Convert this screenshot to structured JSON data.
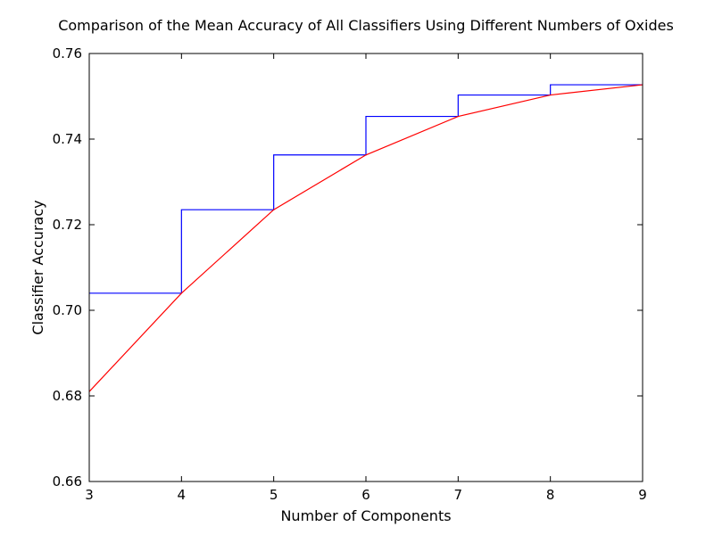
{
  "chart_data": {
    "type": "line",
    "title": "Comparison of the Mean Accuracy of All Classifiers Using Different Numbers of Oxides",
    "xlabel": "Number of Components",
    "ylabel": "Classifier Accuracy",
    "xlim": [
      3,
      9
    ],
    "ylim": [
      0.66,
      0.76
    ],
    "x_ticks": [
      "3",
      "4",
      "5",
      "6",
      "7",
      "8",
      "9"
    ],
    "y_ticks": [
      "0.66",
      "0.68",
      "0.70",
      "0.72",
      "0.74",
      "0.76"
    ],
    "grid": false,
    "series": [
      {
        "style": "step",
        "color": "#0000ff",
        "x": [
          3,
          4,
          5,
          6,
          7,
          8,
          9
        ],
        "y": [
          0.704,
          0.7235,
          0.7363,
          0.7453,
          0.7503,
          0.7527,
          0.7527
        ]
      },
      {
        "style": "line",
        "color": "#ff0000",
        "x": [
          3,
          4,
          5,
          6,
          7,
          8,
          9
        ],
        "y": [
          0.681,
          0.704,
          0.7235,
          0.7363,
          0.7453,
          0.7503,
          0.7527
        ]
      }
    ]
  }
}
